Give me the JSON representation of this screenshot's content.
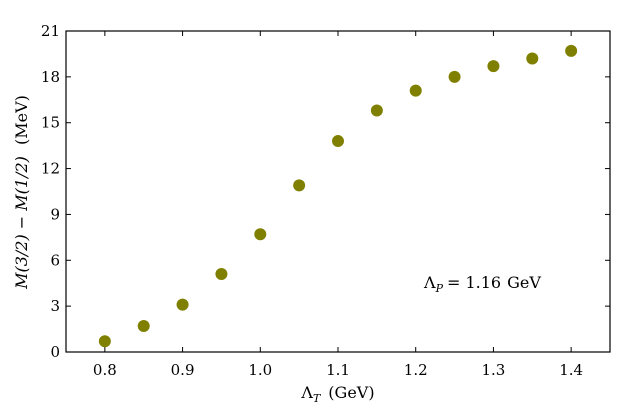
{
  "chart_data": {
    "type": "scatter",
    "x": [
      0.8,
      0.85,
      0.9,
      0.95,
      1.0,
      1.05,
      1.1,
      1.15,
      1.2,
      1.25,
      1.3,
      1.35,
      1.4
    ],
    "y": [
      0.7,
      1.7,
      3.1,
      5.1,
      7.7,
      10.9,
      13.8,
      15.8,
      17.1,
      18.0,
      18.7,
      19.2,
      19.7
    ],
    "xlim": [
      0.75,
      1.45
    ],
    "ylim": [
      0,
      21
    ],
    "xticks": [
      0.8,
      0.9,
      1.0,
      1.1,
      1.2,
      1.3,
      1.4
    ],
    "xtick_labels": [
      "0.8",
      "0.9",
      "1.0",
      "1.1",
      "1.2",
      "1.3",
      "1.4"
    ],
    "yticks": [
      0,
      3,
      6,
      9,
      12,
      15,
      18,
      21
    ],
    "ytick_labels": [
      "0",
      "3",
      "6",
      "9",
      "12",
      "15",
      "18",
      "21"
    ],
    "xlabel": {
      "symbol": "Λ",
      "subscript": "T",
      "unit": "(GeV)"
    },
    "ylabel": {
      "expr": "M(3/2) − M(1/2)",
      "unit": "(MeV)"
    },
    "annotation": {
      "symbol": "Λ",
      "subscript": "P",
      "equals": "= 1.16",
      "unit": "GeV"
    },
    "marker_color": "#808000",
    "grid": false,
    "legend": "none"
  }
}
